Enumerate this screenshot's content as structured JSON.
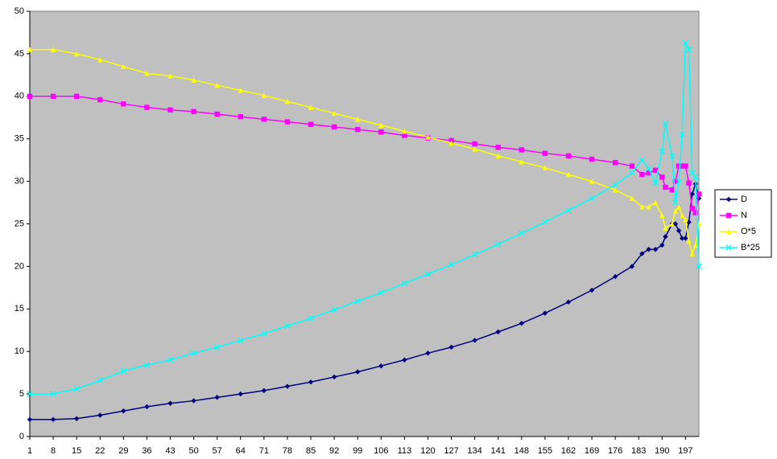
{
  "chart_data": {
    "type": "line",
    "x": [
      1,
      8,
      15,
      22,
      29,
      36,
      43,
      50,
      57,
      64,
      71,
      78,
      85,
      92,
      99,
      106,
      113,
      120,
      127,
      134,
      141,
      148,
      155,
      162,
      169,
      176,
      181,
      184,
      186,
      188,
      190,
      191,
      193,
      194,
      195,
      196,
      197,
      198,
      199,
      200,
      201
    ],
    "series": [
      {
        "name": "D",
        "color": "#000080",
        "marker": "diamond",
        "values": [
          2,
          2,
          2.1,
          2.5,
          3,
          3.5,
          3.9,
          4.2,
          4.6,
          5,
          5.4,
          5.9,
          6.4,
          7,
          7.6,
          8.3,
          9,
          9.8,
          10.5,
          11.3,
          12.3,
          13.3,
          14.5,
          15.8,
          17.2,
          18.8,
          20,
          21.5,
          22,
          22,
          22.5,
          23.5,
          25,
          25,
          24.2,
          23.3,
          23.3,
          25.2,
          28.5,
          29.7,
          28
        ]
      },
      {
        "name": "N",
        "color": "#ff00ff",
        "marker": "square",
        "values": [
          40,
          40,
          40,
          39.6,
          39.1,
          38.7,
          38.4,
          38.2,
          37.9,
          37.6,
          37.3,
          37,
          36.7,
          36.4,
          36.1,
          35.8,
          35.4,
          35.1,
          34.8,
          34.4,
          34,
          33.7,
          33.3,
          33,
          32.6,
          32.2,
          31.8,
          30.8,
          31,
          31.3,
          30.5,
          29.3,
          29,
          30,
          31.8,
          31.8,
          31.8,
          29.8,
          26.8,
          26.3,
          28.5
        ]
      },
      {
        "name": "O*5",
        "color": "#ffff00",
        "marker": "triangle",
        "values": [
          45.5,
          45.5,
          45,
          44.3,
          43.5,
          42.7,
          42.4,
          41.9,
          41.3,
          40.7,
          40.1,
          39.4,
          38.7,
          38,
          37.3,
          36.6,
          35.9,
          35.2,
          34.5,
          33.8,
          33,
          32.3,
          31.6,
          30.8,
          30,
          29,
          28,
          27,
          27,
          27.5,
          26,
          24.5,
          25,
          26.5,
          27,
          26,
          25.5,
          23,
          21.5,
          22.5,
          25
        ]
      },
      {
        "name": "B*25",
        "color": "#00ffff",
        "marker": "x",
        "values": [
          5,
          5,
          5.6,
          6.6,
          7.7,
          8.4,
          9,
          9.8,
          10.5,
          11.3,
          12.1,
          13,
          13.9,
          14.9,
          15.9,
          16.9,
          18,
          19.1,
          20.2,
          21.4,
          22.6,
          23.9,
          25.2,
          26.6,
          28,
          29.6,
          31,
          32.5,
          31.5,
          29.8,
          33.5,
          36.8,
          33,
          27.5,
          30,
          35.5,
          46.3,
          45.5,
          31,
          30.5,
          20
        ]
      }
    ],
    "xlim": [
      1,
      201
    ],
    "xticks": [
      1,
      8,
      15,
      22,
      29,
      36,
      43,
      50,
      57,
      64,
      71,
      78,
      85,
      92,
      99,
      106,
      113,
      120,
      127,
      134,
      141,
      148,
      155,
      162,
      169,
      176,
      183,
      190,
      197
    ],
    "ylim": [
      0,
      50
    ],
    "yticks": [
      0,
      5,
      10,
      15,
      20,
      25,
      30,
      35,
      40,
      45,
      50
    ],
    "grid": false,
    "plot_background": "#c0c0c0",
    "legend_position": "right"
  }
}
